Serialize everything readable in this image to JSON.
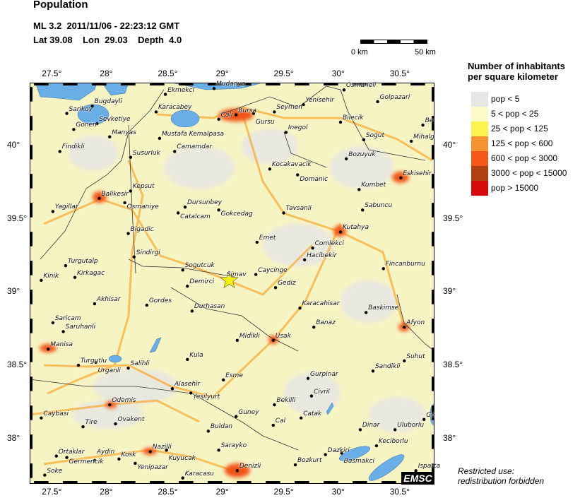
{
  "header": {
    "title": "Population",
    "event_line": "ML 3.2  2011/11/06 - 22:23:12 GMT",
    "location_line": "Lat 39.08    Lon  29.03    Depth  4.0"
  },
  "epicenter": {
    "lat": 39.08,
    "lon": 29.03,
    "magnitude": "ML 3.2",
    "depth": 4.0,
    "symbol": "star-icon",
    "color": "#f5f000"
  },
  "map": {
    "lon_range": [
      27.31,
      30.8
    ],
    "lat_range": [
      37.69,
      40.43
    ],
    "lon_ticks": [
      "27.5°",
      "28°",
      "28.5°",
      "29°",
      "29.5°",
      "30°",
      "30.5°"
    ],
    "lon_tick_values": [
      27.5,
      28,
      28.5,
      29,
      29.5,
      30,
      30.5
    ],
    "lat_ticks": [
      "38°",
      "38.5°",
      "39°",
      "39.5°",
      "40°"
    ],
    "lat_tick_values": [
      38,
      38.5,
      39,
      39.5,
      40
    ],
    "water_color": "#6aaee8",
    "cities": [
      {
        "name": "Mudanya",
        "lon": 28.9,
        "lat": 40.39
      },
      {
        "name": "Ekmekci",
        "lon": 28.48,
        "lat": 40.35
      },
      {
        "name": "Karacabey",
        "lon": 28.4,
        "lat": 40.23
      },
      {
        "name": "Sarikoy",
        "lon": 27.63,
        "lat": 40.22
      },
      {
        "name": "Bugdayli",
        "lon": 27.85,
        "lat": 40.27
      },
      {
        "name": "Gonen",
        "lon": 27.69,
        "lat": 40.11
      },
      {
        "name": "Sevketiye",
        "lon": 27.89,
        "lat": 40.15
      },
      {
        "name": "Manyas",
        "lon": 28.0,
        "lat": 40.06
      },
      {
        "name": "Mustafa Kemalpasa",
        "lon": 28.43,
        "lat": 40.05
      },
      {
        "name": "Findikli",
        "lon": 27.57,
        "lat": 39.96
      },
      {
        "name": "Camamdar",
        "lon": 28.56,
        "lat": 39.96
      },
      {
        "name": "Susurluk",
        "lon": 28.18,
        "lat": 39.92
      },
      {
        "name": "Kepsut",
        "lon": 28.18,
        "lat": 39.69
      },
      {
        "name": "Balikesir",
        "lon": 27.91,
        "lat": 39.64
      },
      {
        "name": "Osmaniye",
        "lon": 28.13,
        "lat": 39.61
      },
      {
        "name": "Yagillar",
        "lon": 27.51,
        "lat": 39.55
      },
      {
        "name": "Dursunbey",
        "lon": 28.65,
        "lat": 39.58
      },
      {
        "name": "Catalcam",
        "lon": 28.59,
        "lat": 39.54
      },
      {
        "name": "Gokcedag",
        "lon": 28.94,
        "lat": 39.56
      },
      {
        "name": "Cali",
        "lon": 28.94,
        "lat": 40.18
      },
      {
        "name": "Bursa",
        "lon": 29.09,
        "lat": 40.21
      },
      {
        "name": "Gursu",
        "lon": 29.24,
        "lat": 40.22
      },
      {
        "name": "Seymen",
        "lon": 29.42,
        "lat": 40.23
      },
      {
        "name": "Yenisehir",
        "lon": 29.67,
        "lat": 40.28
      },
      {
        "name": "Osmaneli",
        "lon": 30.02,
        "lat": 40.38
      },
      {
        "name": "Golpazari",
        "lon": 30.31,
        "lat": 40.3
      },
      {
        "name": "Bilecik",
        "lon": 29.99,
        "lat": 40.16
      },
      {
        "name": "Be",
        "lon": 30.7,
        "lat": 40.14
      },
      {
        "name": "Inegol",
        "lon": 29.52,
        "lat": 40.09
      },
      {
        "name": "Sogut",
        "lon": 30.19,
        "lat": 40.04
      },
      {
        "name": "Mihalg",
        "lon": 30.6,
        "lat": 40.03
      },
      {
        "name": "Bozuyuk",
        "lon": 30.04,
        "lat": 39.91
      },
      {
        "name": "Kocakavacik",
        "lon": 29.38,
        "lat": 39.84
      },
      {
        "name": "Domanic",
        "lon": 29.62,
        "lat": 39.8
      },
      {
        "name": "Eskisehir",
        "lon": 30.51,
        "lat": 39.78
      },
      {
        "name": "Kumbet",
        "lon": 30.15,
        "lat": 39.7
      },
      {
        "name": "Sabuncu",
        "lon": 30.18,
        "lat": 39.56
      },
      {
        "name": "Tavsanli",
        "lon": 29.5,
        "lat": 39.54
      },
      {
        "name": "Bigadic",
        "lon": 28.16,
        "lat": 39.4
      },
      {
        "name": "Sindirgi",
        "lon": 28.21,
        "lat": 39.24
      },
      {
        "name": "Turgutalp",
        "lon": 27.62,
        "lat": 39.18
      },
      {
        "name": "Sogutcuk",
        "lon": 28.63,
        "lat": 39.15
      },
      {
        "name": "Kirkagac",
        "lon": 27.7,
        "lat": 39.1
      },
      {
        "name": "Kinik",
        "lon": 27.41,
        "lat": 39.08
      },
      {
        "name": "Simav",
        "lon": 28.99,
        "lat": 39.09
      },
      {
        "name": "Demirci",
        "lon": 28.67,
        "lat": 39.04
      },
      {
        "name": "Akhisar",
        "lon": 27.87,
        "lat": 38.92
      },
      {
        "name": "Gordes",
        "lon": 28.32,
        "lat": 38.91
      },
      {
        "name": "Durhasan",
        "lon": 28.71,
        "lat": 38.87
      },
      {
        "name": "Saricam",
        "lon": 27.51,
        "lat": 38.79
      },
      {
        "name": "Saruhanli",
        "lon": 27.6,
        "lat": 38.73
      },
      {
        "name": "Manisa",
        "lon": 27.47,
        "lat": 38.61
      },
      {
        "name": "Kutahya",
        "lon": 29.99,
        "lat": 39.41
      },
      {
        "name": "Emet",
        "lon": 29.27,
        "lat": 39.34
      },
      {
        "name": "Comlekci",
        "lon": 29.75,
        "lat": 39.3
      },
      {
        "name": "Hacibekir",
        "lon": 29.68,
        "lat": 39.22
      },
      {
        "name": "Fincanburnu",
        "lon": 30.36,
        "lat": 39.16
      },
      {
        "name": "Caycinge",
        "lon": 29.26,
        "lat": 39.12
      },
      {
        "name": "Gediz",
        "lon": 29.43,
        "lat": 39.03
      },
      {
        "name": "Karacahisar",
        "lon": 29.64,
        "lat": 38.89
      },
      {
        "name": "Baskimse",
        "lon": 30.21,
        "lat": 38.86
      },
      {
        "name": "Banaz",
        "lon": 29.76,
        "lat": 38.76
      },
      {
        "name": "Afyon",
        "lon": 30.54,
        "lat": 38.76
      },
      {
        "name": "Midikli",
        "lon": 29.1,
        "lat": 38.67
      },
      {
        "name": "Usak",
        "lon": 29.41,
        "lat": 38.67
      },
      {
        "name": "Kula",
        "lon": 28.67,
        "lat": 38.54
      },
      {
        "name": "Turgutlu",
        "lon": 27.73,
        "lat": 38.5
      },
      {
        "name": "Urganli",
        "lon": 27.88,
        "lat": 38.52
      },
      {
        "name": "Salihli",
        "lon": 28.16,
        "lat": 38.48
      },
      {
        "name": "Esme",
        "lon": 28.98,
        "lat": 38.4
      },
      {
        "name": "Alasehir",
        "lon": 28.54,
        "lat": 38.34
      },
      {
        "name": "Yesilyurt",
        "lon": 28.7,
        "lat": 38.31
      },
      {
        "name": "Odemis",
        "lon": 28.0,
        "lat": 38.23
      },
      {
        "name": "Caybasi",
        "lon": 27.41,
        "lat": 38.14
      },
      {
        "name": "Tire",
        "lon": 27.77,
        "lat": 38.08
      },
      {
        "name": "Ovakent",
        "lon": 28.05,
        "lat": 38.1
      },
      {
        "name": "Buldan",
        "lon": 28.85,
        "lat": 38.05
      },
      {
        "name": "Guney",
        "lon": 29.09,
        "lat": 38.15
      },
      {
        "name": "Ortaklar",
        "lon": 27.54,
        "lat": 37.88
      },
      {
        "name": "Germencik",
        "lon": 27.63,
        "lat": 37.87
      },
      {
        "name": "Aydin",
        "lon": 27.87,
        "lat": 37.85
      },
      {
        "name": "Kosk",
        "lon": 28.08,
        "lat": 37.86
      },
      {
        "name": "Nazilli",
        "lon": 28.35,
        "lat": 37.91
      },
      {
        "name": "Kuyucak",
        "lon": 28.49,
        "lat": 37.92
      },
      {
        "name": "Sarayko",
        "lon": 28.94,
        "lat": 37.92
      },
      {
        "name": "Yenipazar",
        "lon": 28.22,
        "lat": 37.83
      },
      {
        "name": "Soke",
        "lon": 27.44,
        "lat": 37.75
      },
      {
        "name": "Karacasu",
        "lon": 28.63,
        "lat": 37.73
      },
      {
        "name": "Suhut",
        "lon": 30.54,
        "lat": 38.53
      },
      {
        "name": "Sandikli",
        "lon": 30.27,
        "lat": 38.46
      },
      {
        "name": "Gurpinar",
        "lon": 29.71,
        "lat": 38.41
      },
      {
        "name": "Civril",
        "lon": 29.74,
        "lat": 38.29
      },
      {
        "name": "Bekilli",
        "lon": 29.42,
        "lat": 38.23
      },
      {
        "name": "Catak",
        "lon": 29.65,
        "lat": 38.14
      },
      {
        "name": "Cal",
        "lon": 29.41,
        "lat": 38.09
      },
      {
        "name": "Dinar",
        "lon": 30.16,
        "lat": 38.06
      },
      {
        "name": "Uluborlu",
        "lon": 30.46,
        "lat": 38.06
      },
      {
        "name": "Go",
        "lon": 30.71,
        "lat": 38.13
      },
      {
        "name": "Dazkiri",
        "lon": 29.86,
        "lat": 37.89
      },
      {
        "name": "Basmakci",
        "lon": 30.0,
        "lat": 37.9
      },
      {
        "name": "Keciborlu",
        "lon": 30.3,
        "lat": 37.95
      },
      {
        "name": "Bozkurt",
        "lon": 29.6,
        "lat": 37.82
      },
      {
        "name": "Denizli",
        "lon": 29.1,
        "lat": 37.78
      },
      {
        "name": "Isparta",
        "lon": 30.64,
        "lat": 37.78
      }
    ]
  },
  "scale_bar": {
    "left_label": "0 km",
    "right_label": "50 km"
  },
  "legend": {
    "title_line1": "Number of inhabitants",
    "title_line2": "per square kilometer",
    "items": [
      {
        "label": "pop < 5",
        "color": "#e6e6e4"
      },
      {
        "label": "5 < pop < 25",
        "color": "#fbfbc8"
      },
      {
        "label": "25 < pop < 125",
        "color": "#fcf250"
      },
      {
        "label": "125 < pop < 600",
        "color": "#f79332"
      },
      {
        "label": "600 < pop < 3000",
        "color": "#f5561a"
      },
      {
        "label": "3000 < pop < 15000",
        "color": "#b0400f"
      },
      {
        "label": "pop > 15000",
        "color": "#d60a0a"
      }
    ]
  },
  "footer": {
    "restricted_line1": "Restricted use:",
    "restricted_line2": "redistribution forbidden",
    "logo": "EMSC"
  }
}
